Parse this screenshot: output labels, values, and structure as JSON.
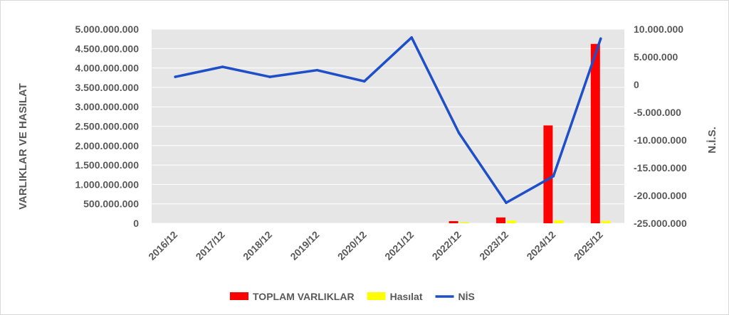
{
  "chart_data": {
    "type": "bar",
    "categories": [
      "2016/12",
      "2017/12",
      "2018/12",
      "2019/12",
      "2020/12",
      "2021/12",
      "2022/12",
      "2023/12",
      "2024/12",
      "2025/12"
    ],
    "series": [
      {
        "name": "TOPLAM VARLIKLAR",
        "type": "bar",
        "axis": "left",
        "color": "#ff0000",
        "values": [
          0,
          0,
          0,
          0,
          0,
          0,
          55000000,
          150000000,
          2520000000,
          4620000000
        ]
      },
      {
        "name": "Hasılat",
        "type": "bar",
        "axis": "left",
        "color": "#ffff00",
        "values": [
          0,
          0,
          0,
          0,
          0,
          0,
          25000000,
          70000000,
          75000000,
          60000000
        ]
      },
      {
        "name": "NİS",
        "type": "line",
        "axis": "right",
        "color": "#1f4fc8",
        "values": [
          1400000,
          3200000,
          1400000,
          2600000,
          600000,
          8500000,
          -8700000,
          -21300000,
          -16500000,
          8300000
        ]
      }
    ],
    "ylabel": "VARLIKLAR VE HASILAT",
    "y2label": "N.İ.S.",
    "ylim": [
      0,
      5000000000
    ],
    "y2lim": [
      -25000000,
      10000000
    ],
    "yticks": [
      "5.000.000.000",
      "4.500.000.000",
      "4.000.000.000",
      "3.500.000.000",
      "3.000.000.000",
      "2.500.000.000",
      "2.000.000.000",
      "1.500.000.000",
      "1.000.000.000",
      "500.000.000",
      "0"
    ],
    "y2ticks": [
      "10.000.000",
      "5.000.000",
      "0",
      "-5.000.000",
      "-10.000.000",
      "-15.000.000",
      "-20.000.000",
      "-25.000.000"
    ],
    "grid": true,
    "plot_background": "#e6e6e6",
    "legend_position": "bottom"
  }
}
